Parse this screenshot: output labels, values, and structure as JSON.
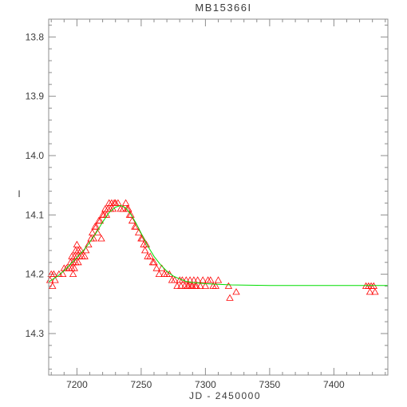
{
  "chart_data": {
    "type": "scatter",
    "title": "MB15366I",
    "xlabel": "JD - 2450000",
    "ylabel": "I",
    "xlim": [
      7178,
      7442
    ],
    "ylim": [
      14.37,
      13.77
    ],
    "y_inverted": true,
    "grid": false,
    "x_ticks": [
      7200,
      7250,
      7300,
      7350,
      7400
    ],
    "x_tick_labels": [
      "7200",
      "7250",
      "7300",
      "7350",
      "7400"
    ],
    "y_ticks": [
      13.8,
      13.9,
      14.0,
      14.1,
      14.2,
      14.3
    ],
    "y_tick_labels": [
      "13.8",
      "13.9",
      "14.0",
      "14.1",
      "14.2",
      "14.3"
    ],
    "series": [
      {
        "kind": "points",
        "marker": "triangle",
        "color": "#ff0000",
        "points": [
          [
            7179,
            14.21
          ],
          [
            7180,
            14.2
          ],
          [
            7181,
            14.22
          ],
          [
            7182,
            14.2
          ],
          [
            7183,
            14.21
          ],
          [
            7186,
            14.2
          ],
          [
            7189,
            14.2
          ],
          [
            7190,
            14.19
          ],
          [
            7192,
            14.19
          ],
          [
            7194,
            14.19
          ],
          [
            7195,
            14.18
          ],
          [
            7196,
            14.19
          ],
          [
            7196,
            14.17
          ],
          [
            7197,
            14.2
          ],
          [
            7197,
            14.18
          ],
          [
            7198,
            14.17
          ],
          [
            7198,
            14.19
          ],
          [
            7199,
            14.16
          ],
          [
            7199,
            14.18
          ],
          [
            7200,
            14.15
          ],
          [
            7200,
            14.17
          ],
          [
            7201,
            14.18
          ],
          [
            7201,
            14.16
          ],
          [
            7202,
            14.17
          ],
          [
            7203,
            14.16
          ],
          [
            7204,
            14.17
          ],
          [
            7206,
            14.17
          ],
          [
            7207,
            14.16
          ],
          [
            7209,
            14.15
          ],
          [
            7211,
            14.14
          ],
          [
            7212,
            14.13
          ],
          [
            7213,
            14.14
          ],
          [
            7214,
            14.12
          ],
          [
            7215,
            14.12
          ],
          [
            7216,
            14.13
          ],
          [
            7217,
            14.11
          ],
          [
            7218,
            14.11
          ],
          [
            7219,
            14.14
          ],
          [
            7220,
            14.1
          ],
          [
            7221,
            14.1
          ],
          [
            7222,
            14.09
          ],
          [
            7223,
            14.1
          ],
          [
            7224,
            14.09
          ],
          [
            7225,
            14.08
          ],
          [
            7226,
            14.09
          ],
          [
            7227,
            14.08
          ],
          [
            7228,
            14.09
          ],
          [
            7229,
            14.08
          ],
          [
            7230,
            14.08
          ],
          [
            7232,
            14.08
          ],
          [
            7234,
            14.09
          ],
          [
            7236,
            14.09
          ],
          [
            7238,
            14.08
          ],
          [
            7239,
            14.09
          ],
          [
            7240,
            14.09
          ],
          [
            7241,
            14.1
          ],
          [
            7242,
            14.1
          ],
          [
            7243,
            14.11
          ],
          [
            7245,
            14.12
          ],
          [
            7246,
            14.12
          ],
          [
            7248,
            14.13
          ],
          [
            7250,
            14.14
          ],
          [
            7251,
            14.14
          ],
          [
            7252,
            14.15
          ],
          [
            7253,
            14.16
          ],
          [
            7254,
            14.15
          ],
          [
            7255,
            14.17
          ],
          [
            7257,
            14.17
          ],
          [
            7259,
            14.18
          ],
          [
            7260,
            14.18
          ],
          [
            7262,
            14.19
          ],
          [
            7264,
            14.2
          ],
          [
            7266,
            14.19
          ],
          [
            7268,
            14.2
          ],
          [
            7270,
            14.2
          ],
          [
            7272,
            14.2
          ],
          [
            7274,
            14.21
          ],
          [
            7276,
            14.21
          ],
          [
            7278,
            14.22
          ],
          [
            7280,
            14.21
          ],
          [
            7281,
            14.22
          ],
          [
            7282,
            14.21
          ],
          [
            7284,
            14.22
          ],
          [
            7285,
            14.21
          ],
          [
            7286,
            14.22
          ],
          [
            7287,
            14.22
          ],
          [
            7288,
            14.21
          ],
          [
            7289,
            14.22
          ],
          [
            7290,
            14.22
          ],
          [
            7291,
            14.21
          ],
          [
            7292,
            14.22
          ],
          [
            7293,
            14.22
          ],
          [
            7294,
            14.21
          ],
          [
            7296,
            14.22
          ],
          [
            7298,
            14.21
          ],
          [
            7300,
            14.22
          ],
          [
            7302,
            14.21
          ],
          [
            7304,
            14.21
          ],
          [
            7306,
            14.22
          ],
          [
            7308,
            14.22
          ],
          [
            7310,
            14.21
          ],
          [
            7318,
            14.22
          ],
          [
            7319,
            14.24
          ],
          [
            7324,
            14.23
          ],
          [
            7425,
            14.22
          ],
          [
            7427,
            14.22
          ],
          [
            7428,
            14.23
          ],
          [
            7429,
            14.22
          ],
          [
            7431,
            14.22
          ],
          [
            7432,
            14.23
          ]
        ]
      },
      {
        "kind": "line",
        "color": "#00dd00",
        "points": [
          [
            7178,
            14.213
          ],
          [
            7185,
            14.203
          ],
          [
            7190,
            14.194
          ],
          [
            7195,
            14.183
          ],
          [
            7200,
            14.172
          ],
          [
            7205,
            14.16
          ],
          [
            7210,
            14.146
          ],
          [
            7215,
            14.13
          ],
          [
            7220,
            14.112
          ],
          [
            7225,
            14.096
          ],
          [
            7230,
            14.087
          ],
          [
            7234,
            14.084
          ],
          [
            7238,
            14.088
          ],
          [
            7242,
            14.099
          ],
          [
            7246,
            14.114
          ],
          [
            7250,
            14.131
          ],
          [
            7255,
            14.152
          ],
          [
            7260,
            14.17
          ],
          [
            7265,
            14.184
          ],
          [
            7270,
            14.195
          ],
          [
            7275,
            14.203
          ],
          [
            7280,
            14.208
          ],
          [
            7285,
            14.212
          ],
          [
            7290,
            14.214
          ],
          [
            7300,
            14.216
          ],
          [
            7320,
            14.218
          ],
          [
            7350,
            14.219
          ],
          [
            7400,
            14.219
          ],
          [
            7442,
            14.219
          ]
        ]
      }
    ]
  }
}
